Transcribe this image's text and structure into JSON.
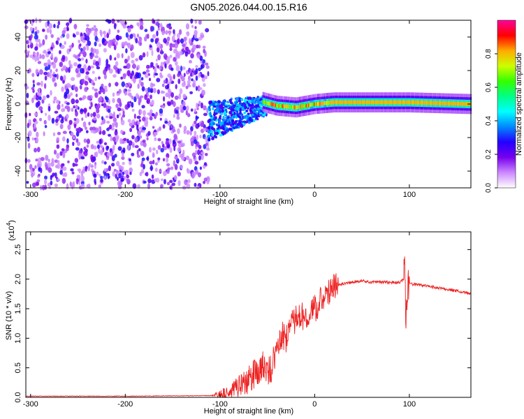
{
  "title": "GN05.2026.044.00.15.R16",
  "colors": {
    "snr_line": "#ee2222",
    "colormap": [
      "#ffffff",
      "#cc88ff",
      "#7700ee",
      "#2200ff",
      "#0088ff",
      "#00ffff",
      "#00ff88",
      "#33ff00",
      "#ccff00",
      "#ffaa00",
      "#ff0000",
      "#ff0099"
    ]
  },
  "chart_data": [
    {
      "type": "heatmap",
      "xlabel": "Height of straight line (km)",
      "ylabel": "Frequency (Hz)",
      "xlim": [
        -305,
        165
      ],
      "ylim": [
        -50,
        50
      ],
      "xticks": [
        -300,
        -200,
        -100,
        0,
        100
      ],
      "xtick_labels": [
        "-300",
        "-200",
        "-100",
        "0",
        "100"
      ],
      "yticks": [
        -40,
        -20,
        0,
        20,
        40
      ],
      "ytick_labels": [
        "-40",
        "-20",
        "0",
        "20",
        "40"
      ],
      "colorbar": {
        "label": "Normalized spectral amplitude",
        "range": [
          0,
          1
        ],
        "ticks": [
          0.0,
          0.2,
          0.4,
          0.6,
          0.8
        ],
        "tick_labels": [
          "0.0",
          "0.2",
          "0.4",
          "0.6",
          "0.8"
        ]
      },
      "regions": [
        {
          "x_from": -305,
          "x_to": -112,
          "pattern": "broadband noise",
          "level": 0.15
        },
        {
          "x_from": -112,
          "x_to": -50,
          "pattern": "scatter centred near -10 Hz",
          "level": 0.3
        },
        {
          "x_from": -50,
          "x_to": 165,
          "pattern": "narrow line near 0 Hz",
          "level": 0.8
        }
      ],
      "ridge": [
        [
          -60,
          2
        ],
        [
          -40,
          -1
        ],
        [
          -20,
          -2
        ],
        [
          0,
          0
        ],
        [
          20,
          1
        ],
        [
          60,
          1
        ],
        [
          100,
          1
        ],
        [
          165,
          0
        ]
      ]
    },
    {
      "type": "line",
      "xlabel": "Height of straight line (km)",
      "ylabel": "SNR (10 * v/v)",
      "y_multiplier": "(x10",
      "y_multiplier_exp": "4",
      "xlim": [
        -305,
        165
      ],
      "ylim": [
        0,
        2.8
      ],
      "xticks": [
        -300,
        -200,
        -100,
        0,
        100
      ],
      "xtick_labels": [
        "-300",
        "-200",
        "-100",
        "0",
        "100"
      ],
      "yticks": [
        0.0,
        0.5,
        1.0,
        1.5,
        2.0,
        2.5
      ],
      "ytick_labels": [
        "0.0",
        "0.5",
        "1.0",
        "1.5",
        "2.0",
        "2.5"
      ],
      "series": [
        {
          "x": [
            -305,
            -200,
            -110,
            -100,
            -90,
            -80,
            -70,
            -60,
            -55,
            -50,
            -45,
            -40,
            -35,
            -30,
            -25,
            -20,
            -15,
            -10,
            -5,
            0,
            5,
            10,
            15,
            20,
            25,
            30,
            40,
            50,
            60,
            70,
            80,
            90,
            95,
            97,
            99,
            100,
            110,
            120,
            130,
            140,
            150,
            165
          ],
          "y": [
            0.02,
            0.02,
            0.03,
            0.05,
            0.1,
            0.2,
            0.3,
            0.45,
            0.55,
            0.45,
            0.5,
            0.9,
            1.05,
            1.0,
            1.25,
            1.3,
            1.35,
            1.4,
            1.45,
            1.5,
            1.6,
            1.7,
            1.8,
            1.85,
            1.9,
            1.92,
            1.95,
            1.97,
            1.95,
            1.95,
            1.94,
            1.95,
            2.0,
            1.3,
            2.0,
            1.92,
            1.9,
            1.88,
            1.85,
            1.83,
            1.8,
            1.75
          ]
        }
      ]
    }
  ]
}
